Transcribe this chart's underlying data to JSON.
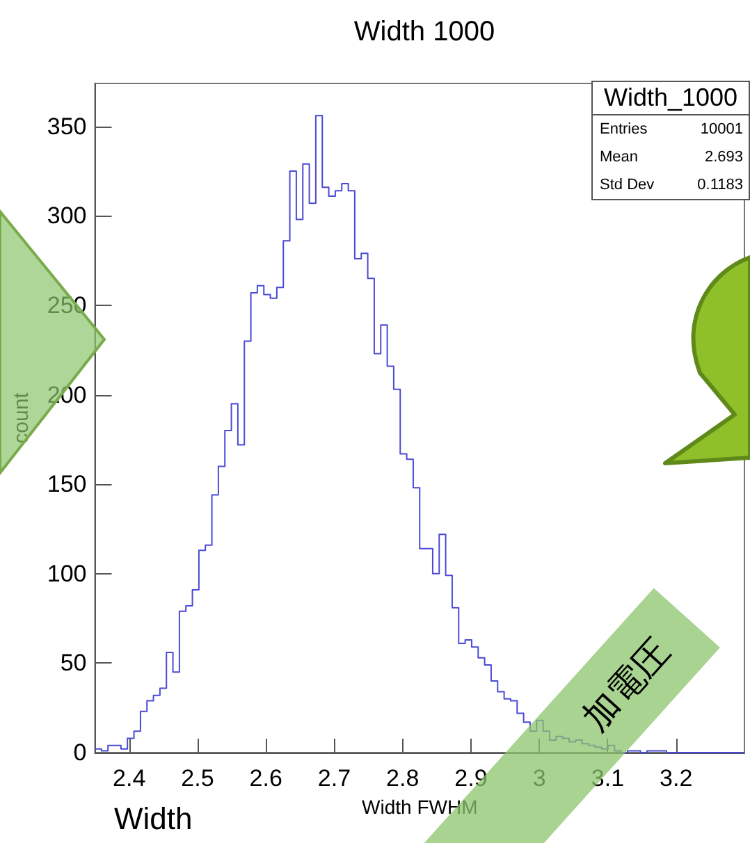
{
  "chart_data": {
    "type": "histogram",
    "title": "Width 1000",
    "xlabel": "Width FWHM",
    "ylabel": "count",
    "color": "#4a4ad6",
    "bins": [
      2.35,
      2.3595,
      2.369,
      2.3785,
      2.388,
      2.3975,
      2.407,
      2.4165,
      2.426,
      2.4355,
      2.445,
      2.4545,
      2.464,
      2.4735,
      2.483,
      2.4925,
      2.502,
      2.5115,
      2.521,
      2.5305,
      2.54,
      2.5495,
      2.559,
      2.5685,
      2.578,
      2.5875,
      2.597,
      2.6065,
      2.616,
      2.6255,
      2.635,
      2.6445,
      2.654,
      2.6635,
      2.673,
      2.6825,
      2.692,
      2.7015,
      2.711,
      2.7205,
      2.73,
      2.7395,
      2.749,
      2.7585,
      2.768,
      2.7775,
      2.787,
      2.7965,
      2.806,
      2.8155,
      2.825,
      2.8345,
      2.844,
      2.8535,
      2.863,
      2.8725,
      2.882,
      2.8915,
      2.901,
      2.9105,
      2.92,
      2.9295,
      2.939,
      2.9485,
      2.958,
      2.9675,
      2.977,
      2.9865,
      2.996,
      3.0055,
      3.015,
      3.0245,
      3.034,
      3.0435,
      3.053,
      3.0625,
      3.072,
      3.0815,
      3.091,
      3.1005,
      3.11,
      3.1195,
      3.129,
      3.1385,
      3.148,
      3.1575,
      3.167,
      3.1765,
      3.186,
      3.1955,
      3.205,
      3.2145,
      3.224,
      3.2335,
      3.243,
      3.2525,
      3.262,
      3.2715,
      3.281,
      3.2905,
      3.3
    ],
    "values": [
      2,
      1,
      4,
      4,
      2,
      8,
      12,
      23,
      29,
      32,
      36,
      56,
      45,
      79,
      82,
      91,
      113,
      116,
      144,
      160,
      180,
      195,
      172,
      230,
      257,
      261,
      256,
      254,
      260,
      286,
      325,
      298,
      329,
      307,
      356,
      316,
      311,
      314,
      318,
      314,
      276,
      279,
      265,
      223,
      239,
      216,
      203,
      167,
      164,
      148,
      114,
      114,
      100,
      122,
      99,
      81,
      61,
      63,
      59,
      53,
      49,
      40,
      34,
      30,
      29,
      22,
      17,
      12,
      18,
      12,
      7,
      9,
      8,
      6,
      7,
      5,
      4,
      3,
      2,
      4,
      1,
      0,
      1,
      1,
      0,
      1,
      1,
      1,
      0,
      0,
      0,
      0,
      0,
      0,
      0,
      0,
      0,
      0,
      0,
      0
    ],
    "xlim": [
      2.35,
      3.3
    ],
    "ylim": [
      0,
      374
    ],
    "xticks": [
      2.4,
      2.5,
      2.6,
      2.7,
      2.8,
      2.9,
      3,
      3.1,
      3.2
    ],
    "yticks": [
      0,
      50,
      100,
      150,
      200,
      250,
      300,
      350
    ],
    "annotations": [
      "Width_1000",
      "Entries",
      "10001",
      "Mean",
      "2.693",
      "Std Dev",
      "0.1183",
      "Width",
      "加電圧"
    ]
  }
}
